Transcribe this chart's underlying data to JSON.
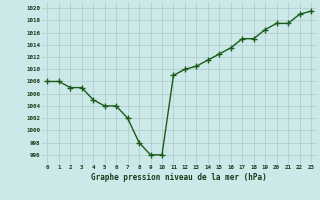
{
  "x": [
    0,
    1,
    2,
    3,
    4,
    5,
    6,
    7,
    8,
    9,
    10,
    11,
    12,
    13,
    14,
    15,
    16,
    17,
    18,
    19,
    20,
    21,
    22,
    23
  ],
  "y": [
    1008,
    1008,
    1007,
    1007,
    1005,
    1004,
    1004,
    1002,
    998,
    996,
    996,
    1009,
    1010,
    1010.5,
    1011.5,
    1012.5,
    1013.5,
    1015,
    1015,
    1016.5,
    1017.5,
    1017.5,
    1019,
    1019.5
  ],
  "title": "Graphe pression niveau de la mer (hPa)",
  "bg_color": "#cce8e8",
  "grid_color": "#aacccc",
  "line_color": "#1a5c1a",
  "marker_color": "#1a5c1a",
  "text_color": "#1a3a1a",
  "ylim": [
    994.5,
    1021
  ],
  "xlim": [
    -0.5,
    23.5
  ],
  "ytick_min": 996,
  "ytick_max": 1020,
  "ytick_step": 2
}
